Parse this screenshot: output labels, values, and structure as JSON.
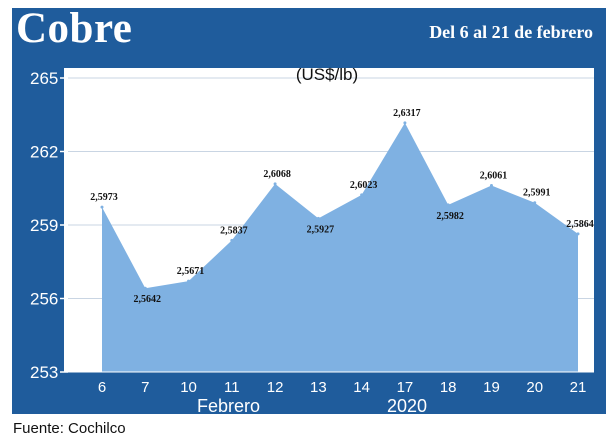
{
  "header": {
    "title": "Cobre",
    "subtitle": "Del 6 al 21 de febrero"
  },
  "footer": {
    "source": "Fuente: Cochilco"
  },
  "colors": {
    "frame": "#1f5c9c",
    "area": "#7fb1e2",
    "line": "#8bbbe8",
    "plot_bg": "#ffffff"
  },
  "chart_data": {
    "type": "area",
    "title": "Cobre",
    "subtitle": "Del 6 al 21 de febrero",
    "unit": "(US$/lb)",
    "categories": [
      "6",
      "7",
      "10",
      "11",
      "12",
      "13",
      "14",
      "17",
      "18",
      "19",
      "20",
      "21"
    ],
    "xlabel_month": "Febrero",
    "xlabel_year": "2020",
    "yticks": [
      "265",
      "262",
      "259",
      "256",
      "253"
    ],
    "ylim": [
      253,
      265
    ],
    "values": [
      259.73,
      256.42,
      256.71,
      258.37,
      260.68,
      259.27,
      260.23,
      263.17,
      259.82,
      260.61,
      259.91,
      258.64
    ],
    "data_labels": [
      "2,5973",
      "2,5642",
      "2,5671",
      "2,5837",
      "2,6068",
      "2,5927",
      "2,6023",
      "2,6317",
      "2,5982",
      "2,6061",
      "2,5991",
      "2,5864"
    ],
    "grid": true,
    "legend": "none"
  }
}
